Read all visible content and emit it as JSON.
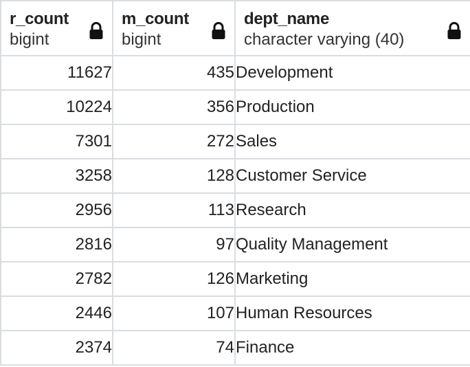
{
  "columns": [
    {
      "name": "r_count",
      "type": "bigint",
      "icon": "lock-icon"
    },
    {
      "name": "m_count",
      "type": "bigint",
      "icon": "lock-icon"
    },
    {
      "name": "dept_name",
      "type": "character varying (40)",
      "icon": "lock-icon"
    }
  ],
  "rows": [
    {
      "r_count": "11627",
      "m_count": "435",
      "dept_name": "Development"
    },
    {
      "r_count": "10224",
      "m_count": "356",
      "dept_name": "Production"
    },
    {
      "r_count": "7301",
      "m_count": "272",
      "dept_name": "Sales"
    },
    {
      "r_count": "3258",
      "m_count": "128",
      "dept_name": "Customer Service"
    },
    {
      "r_count": "2956",
      "m_count": "113",
      "dept_name": "Research"
    },
    {
      "r_count": "2816",
      "m_count": "97",
      "dept_name": "Quality Management"
    },
    {
      "r_count": "2782",
      "m_count": "126",
      "dept_name": "Marketing"
    },
    {
      "r_count": "2446",
      "m_count": "107",
      "dept_name": "Human Resources"
    },
    {
      "r_count": "2374",
      "m_count": "74",
      "dept_name": "Finance"
    }
  ],
  "colors": {
    "grid_line": "#d9dde3",
    "text": "#222222",
    "accent": "#2b6cb0"
  }
}
